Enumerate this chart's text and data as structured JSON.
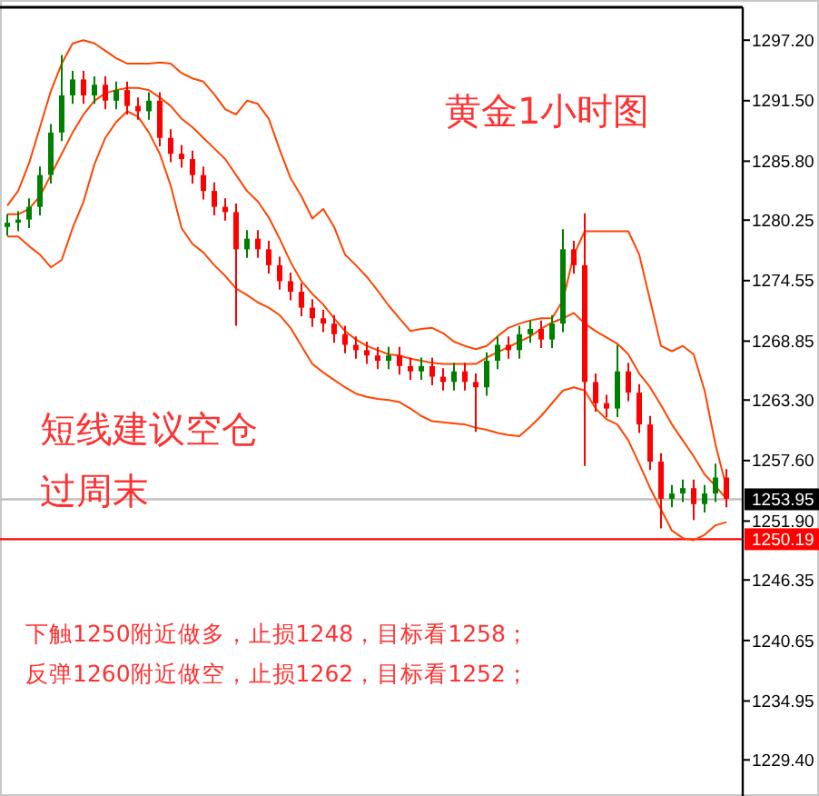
{
  "chart_data": {
    "type": "candlestick",
    "title": "黄金1小时图",
    "categories": [
      null,
      null,
      null,
      null,
      null,
      null,
      null,
      null,
      null,
      null,
      null,
      null,
      null,
      null,
      null,
      null,
      null,
      null,
      null,
      null,
      null,
      null,
      null,
      null,
      null,
      null,
      null,
      null,
      null,
      null,
      null,
      null,
      null,
      null,
      null,
      null,
      null,
      null,
      null,
      null,
      null,
      null,
      null,
      null,
      null,
      null,
      null,
      null,
      null,
      null,
      null,
      null,
      null,
      null,
      null,
      null,
      null,
      null,
      null,
      null,
      null,
      null,
      null,
      null,
      null,
      null,
      null
    ],
    "ylim": [
      1226,
      1300.3
    ],
    "yticks": [
      {
        "value": 1297.2,
        "label": "1297.20"
      },
      {
        "value": 1291.5,
        "label": "1291.50"
      },
      {
        "value": 1285.8,
        "label": "1285.80"
      },
      1280.25,
      1274.55,
      1268.85,
      {
        "value": 1263.3,
        "label": "1263.30"
      },
      {
        "value": 1257.6,
        "label": "1257.60"
      },
      {
        "value": 1251.9,
        "label": "1251.90"
      },
      1246.35,
      1240.65,
      1234.95,
      {
        "value": 1229.4,
        "label": "1229.40"
      }
    ],
    "grid": false,
    "ref_lines": [
      {
        "axis": "y",
        "value": 1253.95,
        "label": "1253.95",
        "color": "#c0c0c0"
      },
      {
        "axis": "y",
        "value": 1250.19,
        "label": "1250.19",
        "color": "#ff0000"
      }
    ],
    "annotations": [
      "短线建议空仓",
      "过周末",
      "下触1250附近做多，止损1248，目标看1258；",
      "反弹1260附近做空，止损1262，目标看1252；"
    ],
    "series": [
      {
        "ohlc": [
          [
            1279.6,
            1280.8,
            1278.8,
            1280
          ],
          [
            1280,
            1281.1,
            1279.2,
            1280.3
          ],
          [
            1280.3,
            1282.3,
            1279.5,
            1281.5
          ],
          [
            1281.5,
            1285.3,
            1280.7,
            1284.5
          ],
          [
            1284.5,
            1289.3,
            1283.7,
            1288.5
          ],
          [
            1288.5,
            1295.8,
            1287.7,
            1292
          ],
          [
            1292,
            1294.3,
            1291.2,
            1293.5
          ],
          [
            1293.5,
            1294.3,
            1291.2,
            1292
          ],
          [
            1292,
            1293.8,
            1291.2,
            1293
          ],
          [
            1293,
            1293.8,
            1290.7,
            1291.5
          ],
          [
            1291.5,
            1293.3,
            1290.7,
            1292.5
          ],
          [
            1292.5,
            1293.3,
            1290.2,
            1291
          ],
          [
            1291,
            1291.8,
            1289.7,
            1290.5
          ],
          [
            1290.5,
            1292.3,
            1289.7,
            1291.5
          ],
          [
            1291.5,
            1292.3,
            1287.2,
            1288
          ],
          [
            1288,
            1288.8,
            1285.7,
            1286.5
          ],
          [
            1286.5,
            1287.3,
            1285.2,
            1286
          ],
          [
            1286,
            1286.8,
            1283.7,
            1284.5
          ],
          [
            1284.5,
            1285.3,
            1282.2,
            1283
          ],
          [
            1283,
            1283.8,
            1280.7,
            1281.5
          ],
          [
            1281.5,
            1282.3,
            1280.2,
            1281
          ],
          [
            1281,
            1281.8,
            1270.3,
            1277.5
          ],
          [
            1277.5,
            1279.3,
            1276.7,
            1278.5
          ],
          [
            1278.5,
            1279.3,
            1276.7,
            1277.5
          ],
          [
            1277.5,
            1278.3,
            1275.2,
            1276
          ],
          [
            1276,
            1276.8,
            1273.7,
            1274.5
          ],
          [
            1274.5,
            1275.3,
            1272.7,
            1273.5
          ],
          [
            1273.5,
            1274.3,
            1271.2,
            1272
          ],
          [
            1272,
            1272.8,
            1270.2,
            1271
          ],
          [
            1271,
            1271.8,
            1269.7,
            1270.5
          ],
          [
            1270.5,
            1271.3,
            1268.7,
            1269.5
          ],
          [
            1269.5,
            1270.3,
            1267.7,
            1268.5
          ],
          [
            1268.5,
            1269.3,
            1267.2,
            1268
          ],
          [
            1268,
            1268.8,
            1266.7,
            1267.5
          ],
          [
            1267.5,
            1268.3,
            1266.2,
            1267
          ],
          [
            1267,
            1268.3,
            1266.2,
            1267.5
          ],
          [
            1267.5,
            1268.3,
            1265.7,
            1266.5
          ],
          [
            1266.5,
            1267.3,
            1265.2,
            1266
          ],
          [
            1266,
            1267.3,
            1265.2,
            1266.5
          ],
          [
            1266.5,
            1267.3,
            1264.7,
            1265.5
          ],
          [
            1265.5,
            1266.3,
            1264.2,
            1265
          ],
          [
            1265,
            1266.8,
            1264.2,
            1266
          ],
          [
            1266,
            1266.8,
            1264.2,
            1265
          ],
          [
            1265,
            1265.8,
            1260.3,
            1264.5
          ],
          [
            1264.5,
            1267.8,
            1263.7,
            1267
          ],
          [
            1267,
            1269.3,
            1266.2,
            1268.5
          ],
          [
            1268.5,
            1269.3,
            1267.2,
            1268
          ],
          [
            1268,
            1270.3,
            1267.2,
            1269.5
          ],
          [
            1269.5,
            1270.8,
            1268.7,
            1270
          ],
          [
            1270,
            1270.8,
            1268.2,
            1269
          ],
          [
            1269,
            1271.3,
            1268.2,
            1270.5
          ],
          [
            1270.5,
            1279.4,
            1269.7,
            1277.5
          ],
          [
            1277.5,
            1278.3,
            1275.2,
            1276
          ],
          [
            1276,
            1280.9,
            1257.1,
            1265
          ],
          [
            1265,
            1265.8,
            1262.2,
            1263
          ],
          [
            1263,
            1263.8,
            1261.7,
            1262.5
          ],
          [
            1262.5,
            1268.5,
            1261.7,
            1266
          ],
          [
            1266,
            1266.8,
            1263.2,
            1264
          ],
          [
            1264,
            1264.8,
            1260.2,
            1261
          ],
          [
            1261,
            1261.8,
            1256.7,
            1257.5
          ],
          [
            1257.5,
            1258.3,
            1251.2,
            1254
          ],
          [
            1254,
            1255.3,
            1253.2,
            1254.5
          ],
          [
            1254.5,
            1255.8,
            1253.7,
            1255
          ],
          [
            1255,
            1255.8,
            1252,
            1253.5
          ],
          [
            1253.5,
            1255.3,
            1252.7,
            1254.5
          ],
          [
            1254.5,
            1257.3,
            1253.7,
            1256
          ],
          [
            1256,
            1256.8,
            1253.2,
            1254
          ]
        ],
        "colors": [
          "#008000",
          "#008000",
          "#008000",
          "#008000",
          "#008000",
          "#008000",
          "#008000",
          "#ff0000",
          "#008000",
          "#ff0000",
          "#008000",
          "#ff0000",
          "#ff0000",
          "#008000",
          "#ff0000",
          "#ff0000",
          "#ff0000",
          "#ff0000",
          "#ff0000",
          "#ff0000",
          "#ff0000",
          "#ff0000",
          "#008000",
          "#ff0000",
          "#ff0000",
          "#ff0000",
          "#ff0000",
          "#ff0000",
          "#ff0000",
          "#ff0000",
          "#ff0000",
          "#ff0000",
          "#ff0000",
          "#ff0000",
          "#ff0000",
          "#008000",
          "#ff0000",
          "#ff0000",
          "#008000",
          "#ff0000",
          "#ff0000",
          "#008000",
          "#ff0000",
          "#ff0000",
          "#008000",
          "#008000",
          "#ff0000",
          "#008000",
          "#008000",
          "#ff0000",
          "#008000",
          "#008000",
          "#ff0000",
          "#ff0000",
          "#ff0000",
          "#ff0000",
          "#008000",
          "#ff0000",
          "#ff0000",
          "#ff0000",
          "#ff0000",
          "#008000",
          "#008000",
          "#ff0000",
          "#008000",
          "#008000",
          "#ff0000"
        ]
      },
      {
        "type": "line",
        "color": "#ff4500",
        "values": [
          1281.6,
          1283,
          1285.6,
          1289,
          1292.4,
          1295,
          1296.9,
          1297.2,
          1296.9,
          1296.2,
          1295.5,
          1295,
          1295,
          1295,
          1295.1,
          1295,
          1294.1,
          1293.6,
          1293.3,
          1292.1,
          1290.7,
          1290.2,
          1291.5,
          1291.2,
          1289.8,
          1286.9,
          1284.2,
          1282.5,
          1280.4,
          1281.3,
          1279.6,
          1277,
          1276,
          1274.9,
          1273.6,
          1272.2,
          1271,
          1269.8,
          1270,
          1270.1,
          1269.6,
          1268.8,
          1268.4,
          1268.1,
          1268.4,
          1269.3,
          1270.1,
          1270.5,
          1270.8,
          1271,
          1271,
          1272.7,
          1277,
          1279.2,
          1279.2,
          1279.2,
          1279.2,
          1279.2,
          1277,
          1272.7,
          1268.4,
          1267.9,
          1268.4,
          1267.6,
          1264.2,
          1259.1,
          1255.1
        ]
      },
      {
        "type": "line",
        "color": "#ff4500",
        "values": [
          1280.8,
          1280.8,
          1281.3,
          1282.5,
          1284.5,
          1286.5,
          1288.5,
          1290.2,
          1291.5,
          1292.2,
          1292.5,
          1292.7,
          1292.7,
          1292.5,
          1291.8,
          1291,
          1289.8,
          1289,
          1288,
          1287,
          1286,
          1284.5,
          1283,
          1282,
          1280.5,
          1278.5,
          1276.3,
          1274.5,
          1273.3,
          1272.3,
          1271,
          1269.8,
          1269,
          1268.4,
          1268,
          1267.6,
          1267.5,
          1267.2,
          1267,
          1266.8,
          1266.7,
          1266.7,
          1266.7,
          1266.7,
          1267.3,
          1267.8,
          1268.3,
          1268.8,
          1269.3,
          1270,
          1270.6,
          1271,
          1271.5,
          1270.5,
          1269.8,
          1269.2,
          1268.6,
          1267.6,
          1265.8,
          1264.5,
          1262.8,
          1261,
          1259.5,
          1258,
          1256.3,
          1255.2,
          1254
        ]
      },
      {
        "type": "line",
        "color": "#ff4500",
        "values": [
          1278.7,
          1278.7,
          1277.8,
          1277,
          1275.8,
          1276.5,
          1279.5,
          1282,
          1285.5,
          1288,
          1289.5,
          1290.5,
          1290,
          1288.5,
          1286.5,
          1283.5,
          1279.5,
          1278,
          1277.2,
          1276,
          1275,
          1273.8,
          1273.2,
          1272.5,
          1272,
          1271.3,
          1270.1,
          1268.4,
          1266.7,
          1265.9,
          1265.2,
          1264.5,
          1263.9,
          1263.6,
          1263.4,
          1263.3,
          1263.1,
          1262.5,
          1261.8,
          1261.3,
          1261.2,
          1261.1,
          1261,
          1260.7,
          1260.5,
          1260.2,
          1260,
          1259.9,
          1260.8,
          1261.8,
          1263,
          1264.2,
          1264.5,
          1264.2,
          1262.5,
          1261.5,
          1261,
          1259.5,
          1257.3,
          1255,
          1253,
          1251,
          1250.3,
          1250.1,
          1250.6,
          1251.5,
          1251.8
        ]
      }
    ]
  }
}
